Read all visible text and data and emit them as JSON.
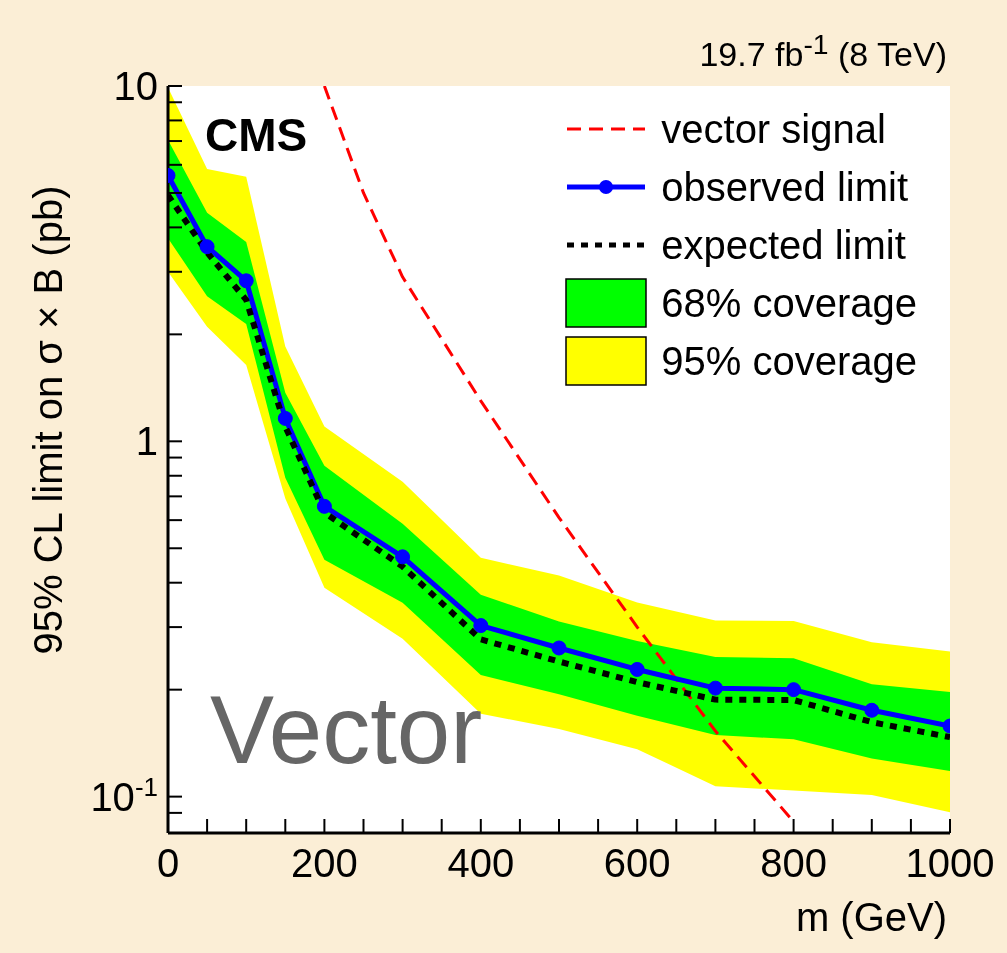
{
  "chart_data": {
    "type": "line",
    "subtitle": "19.7 fb$^{-1}$ (8 TeV)",
    "xlabel": "m (GeV)",
    "ylabel": "95% CL limit on σ × B (pb)",
    "annotations": [
      "CMS",
      "Vector"
    ],
    "x": [
      0,
      50,
      100,
      150,
      200,
      300,
      400,
      500,
      600,
      700,
      800,
      900,
      1000
    ],
    "xlim": [
      0,
      1000
    ],
    "xticks": [
      0,
      {
        "value": 50,
        "label": null
      },
      {
        "value": 100,
        "label": null
      },
      {
        "value": 150,
        "label": null
      },
      200,
      {
        "value": 250,
        "label": null
      },
      {
        "value": 300,
        "label": null
      },
      {
        "value": 350,
        "label": null
      },
      400,
      {
        "value": 450,
        "label": null
      },
      {
        "value": 500,
        "label": null
      },
      {
        "value": 550,
        "label": null
      },
      600,
      {
        "value": 650,
        "label": null
      },
      {
        "value": 700,
        "label": null
      },
      {
        "value": 750,
        "label": null
      },
      800,
      {
        "value": 850,
        "label": null
      },
      {
        "value": 900,
        "label": null
      },
      {
        "value": 950,
        "label": null
      },
      1000
    ],
    "ylim": [
      0.079,
      10
    ],
    "log": true,
    "yticks": [
      {
        "value": 0.09,
        "label": null
      },
      {
        "value": 0.1,
        "label": "10$^{-1}$"
      },
      {
        "value": 0.2,
        "label": null
      },
      {
        "value": 0.3,
        "label": null
      },
      {
        "value": 0.4,
        "label": null
      },
      {
        "value": 0.5,
        "label": null
      },
      {
        "value": 0.6,
        "label": null
      },
      {
        "value": 0.7,
        "label": null
      },
      {
        "value": 0.8,
        "label": null
      },
      {
        "value": 0.9,
        "label": null
      },
      1,
      {
        "value": 2,
        "label": null
      },
      {
        "value": 3,
        "label": null
      },
      {
        "value": 4,
        "label": null
      },
      {
        "value": 5,
        "label": null
      },
      {
        "value": 6,
        "label": null
      },
      {
        "value": 7,
        "label": null
      },
      {
        "value": 8,
        "label": null
      },
      {
        "value": 9,
        "label": null
      },
      10
    ],
    "legend": "top right",
    "series": [
      {
        "name": "vector signal",
        "color": "#ff0000",
        "line_style": "dashed",
        "marker": "none",
        "x": [
          200,
          250,
          300,
          400,
          500,
          600,
          700,
          800
        ],
        "values": [
          10,
          5.0,
          2.9,
          1.3,
          0.61,
          0.3,
          0.153,
          0.085
        ]
      },
      {
        "name": "observed limit",
        "color": "#0000ff",
        "line_style": "solid",
        "marker": "circle",
        "values": [
          5.6,
          3.53,
          2.83,
          1.16,
          0.656,
          0.473,
          0.303,
          0.262,
          0.228,
          0.202,
          0.2,
          0.175,
          0.158
        ]
      },
      {
        "name": "expected limit",
        "color": "#000000",
        "line_style": "dotted",
        "marker": "none",
        "values": [
          4.93,
          3.4,
          2.5,
          1.1,
          0.63,
          0.444,
          0.277,
          0.24,
          0.21,
          0.1875,
          0.187,
          0.162,
          0.147
        ]
      },
      {
        "name": "68% coverage",
        "type": "area",
        "color": "#00ff00",
        "values": [
          null,
          null,
          null,
          null,
          null,
          null,
          null,
          null,
          null,
          null,
          null,
          null,
          null
        ],
        "lower": [
          3.73,
          2.56,
          2.14,
          0.79,
          0.464,
          0.351,
          0.22,
          0.194,
          0.169,
          0.149,
          0.145,
          0.128,
          0.118
        ],
        "upper": [
          7.05,
          4.4,
          3.64,
          1.37,
          0.853,
          0.586,
          0.37,
          0.311,
          0.274,
          0.247,
          0.245,
          0.207,
          0.197
        ]
      },
      {
        "name": "95% coverage",
        "type": "area",
        "color": "#ffff00",
        "values": [
          null,
          null,
          null,
          null,
          null,
          null,
          null,
          null,
          null,
          null,
          null,
          null,
          null
        ],
        "lower": [
          3.0,
          2.1,
          1.64,
          0.69,
          0.387,
          0.278,
          0.171,
          0.155,
          0.136,
          0.107,
          0.104,
          0.101,
          0.0904
        ],
        "upper": [
          9.9,
          5.84,
          5.55,
          1.85,
          1.1,
          0.77,
          0.47,
          0.419,
          0.352,
          0.313,
          0.312,
          0.272,
          0.256
        ]
      }
    ]
  }
}
